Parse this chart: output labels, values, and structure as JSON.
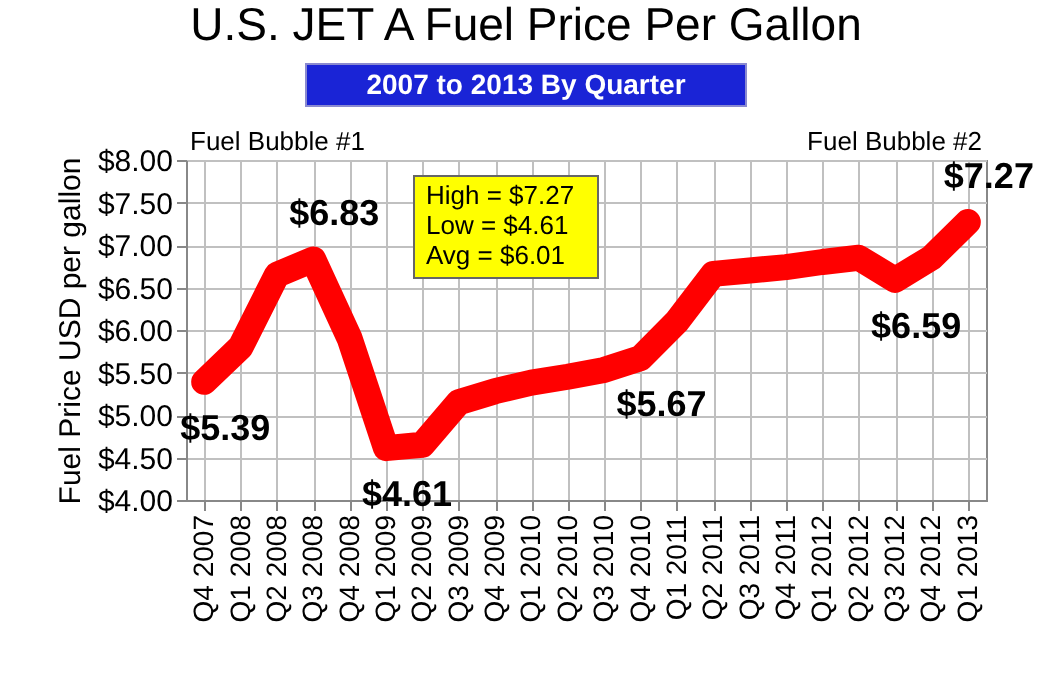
{
  "chart_data": {
    "type": "line",
    "title": "U.S. JET A Fuel Price Per Gallon",
    "subtitle": "2007 to 2013 By Quarter",
    "ylabel": "Fuel Price USD per gallon",
    "categories": [
      "Q4 2007",
      "Q1 2008",
      "Q2 2008",
      "Q3 2008",
      "Q4 2008",
      "Q1 2009",
      "Q2 2009",
      "Q3 2009",
      "Q4 2009",
      "Q1 2010",
      "Q2 2010",
      "Q3 2010",
      "Q4 2010",
      "Q1 2011",
      "Q2 2011",
      "Q3 2011",
      "Q4 2011",
      "Q1 2012",
      "Q2 2012",
      "Q3 2012",
      "Q4 2012",
      "Q1 2013"
    ],
    "series": [
      {
        "color": "#ff0000",
        "values": [
          5.39,
          5.8,
          6.65,
          6.83,
          5.9,
          4.61,
          4.65,
          5.15,
          5.28,
          5.38,
          5.45,
          5.53,
          5.67,
          6.1,
          6.66,
          6.7,
          6.74,
          6.8,
          6.85,
          6.59,
          6.85,
          7.27
        ],
        "value_labels": [
          "$5.39",
          null,
          null,
          "$6.83",
          null,
          "$4.61",
          null,
          null,
          null,
          null,
          null,
          null,
          "$5.67",
          null,
          null,
          null,
          null,
          null,
          null,
          "$6.59",
          null,
          "$7.27"
        ]
      }
    ],
    "ylim": [
      4,
      8
    ],
    "yticks": [
      {
        "value": 4,
        "label": "$4.00"
      },
      {
        "value": 4.5,
        "label": "$4.50"
      },
      {
        "value": 5,
        "label": "$5.00"
      },
      {
        "value": 5.5,
        "label": "$5.50"
      },
      {
        "value": 6,
        "label": "$6.00"
      },
      {
        "value": 6.5,
        "label": "$6.50"
      },
      {
        "value": 7,
        "label": "$7.00"
      },
      {
        "value": 7.5,
        "label": "$7.50"
      },
      {
        "value": 8,
        "label": "$8.00"
      }
    ],
    "grid": true,
    "line_style": "solid",
    "annotations": [
      "Fuel Bubble #1",
      "Fuel Bubble #2",
      "High = $7.27",
      "Low  = $4.61",
      "Avg  = $6.01"
    ]
  }
}
